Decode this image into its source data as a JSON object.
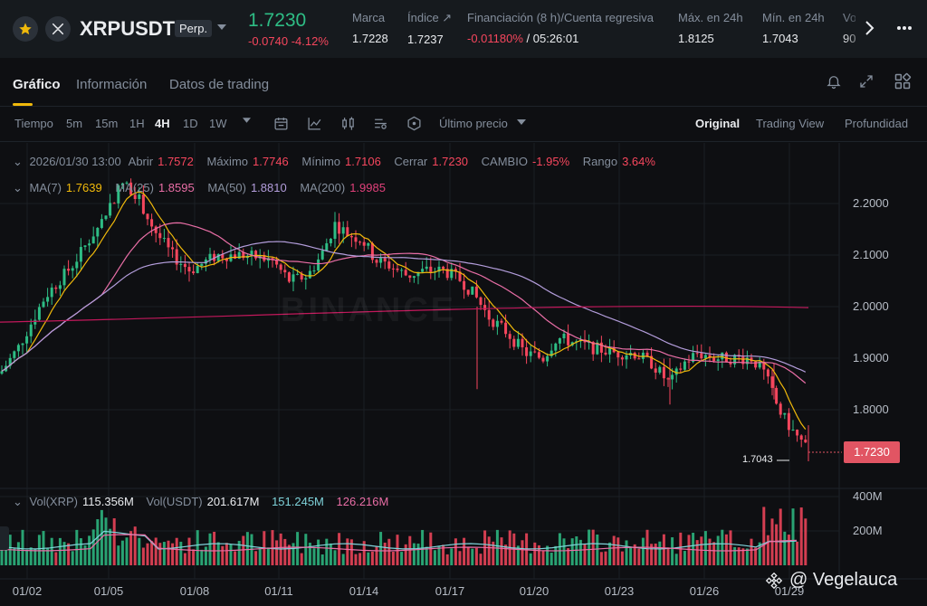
{
  "header": {
    "symbol": "XRPUSDT",
    "contract_type": "Perp.",
    "last_price": "1.7230",
    "change_abs": "-0.0740",
    "change_pct": "-4.12%",
    "stats": [
      {
        "label": "Marca",
        "value": "1.7228"
      },
      {
        "label": "Índice ↗",
        "value": "1.7237"
      },
      {
        "label": "Financiación (8 h)/Cuenta regresiva",
        "value_neg": "-0.01180%",
        "value": " / 05:26:01"
      },
      {
        "label": "Máx. en 24h",
        "value": "1.8125"
      },
      {
        "label": "Mín. en 24h",
        "value": "1.7043"
      },
      {
        "label": "Vo",
        "value": "90"
      }
    ]
  },
  "panel_tabs": {
    "grafico": "Gráfico",
    "informacion": "Información",
    "datos": "Datos de trading"
  },
  "toolbar": {
    "tiempo": "Tiempo",
    "intervals": [
      "5m",
      "15m",
      "1H",
      "4H",
      "1D",
      "1W"
    ],
    "active_interval": "4H",
    "price_type": "Último precio",
    "views": [
      "Original",
      "Trading View",
      "Profundidad"
    ],
    "active_view": "Original"
  },
  "ohlc": {
    "date": "2026/01/30 13:00",
    "abrir_label": "Abrir",
    "abrir": "1.7572",
    "max_label": "Máximo",
    "max": "1.7746",
    "min_label": "Mínimo",
    "min": "1.7106",
    "cerrar_label": "Cerrar",
    "cerrar": "1.7230",
    "cambio_label": "CAMBIO",
    "cambio": "-1.95%",
    "rango_label": "Rango",
    "rango": "3.64%"
  },
  "ma": {
    "ma7_label": "MA(7)",
    "ma7": "1.7639",
    "ma25_label": "MA(25)",
    "ma25": "1.8595",
    "ma50_label": "MA(50)",
    "ma50": "1.8810",
    "ma200_label": "MA(200)",
    "ma200": "1.9985"
  },
  "volume": {
    "vol_xrp_label": "Vol(XRP)",
    "vol_xrp": "115.356M",
    "vol_usdt_label": "Vol(USDT)",
    "vol_usdt": "201.617M",
    "ma1": "151.245M",
    "ma2": "126.216M",
    "axis_labels": [
      "400M",
      "200M"
    ]
  },
  "price_axis": [
    "2.2000",
    "2.1000",
    "2.0000",
    "1.9000",
    "1.8000"
  ],
  "current_price_tag": "1.7230",
  "low_marker": "1.7043",
  "x_axis": [
    "01/02",
    "01/05",
    "01/08",
    "01/11",
    "01/14",
    "01/17",
    "01/20",
    "01/23",
    "01/26",
    "01/29"
  ],
  "watermark_brand": "BINANCE",
  "watermark_author": "@ Vegelauca",
  "colors": {
    "up": "#2ebd85",
    "down": "#f6465d",
    "ma7": "#f0b90b",
    "ma25": "#e96ea6",
    "ma50": "#b39ddb",
    "ma200": "#c2185b",
    "accent": "#f0b90b",
    "bg": "#0e0f12"
  }
}
